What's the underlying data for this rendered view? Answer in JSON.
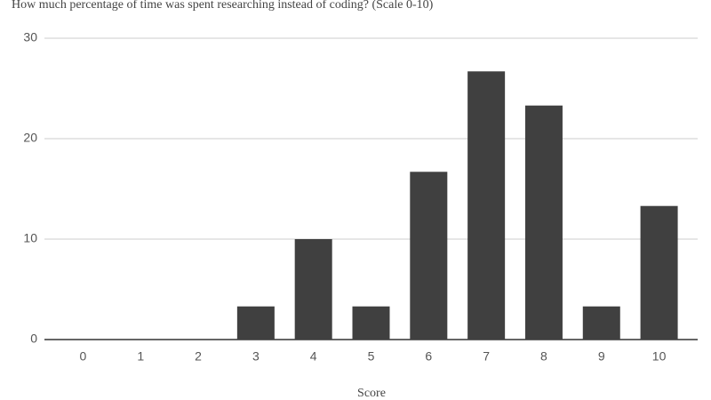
{
  "chart_data": {
    "type": "bar",
    "title": "How much percentage of time was spent researching instead of coding? (Scale 0-10)",
    "x_label": "Score",
    "categories": [
      "0",
      "1",
      "2",
      "3",
      "4",
      "5",
      "6",
      "7",
      "8",
      "9",
      "10"
    ],
    "values": [
      0,
      0,
      0,
      3.3,
      10,
      3.3,
      16.7,
      26.7,
      23.3,
      3.3,
      13.3
    ],
    "color": "#404040",
    "ylim": [
      0,
      30
    ],
    "yticks": [
      0,
      10,
      20,
      30
    ],
    "grid": true
  }
}
